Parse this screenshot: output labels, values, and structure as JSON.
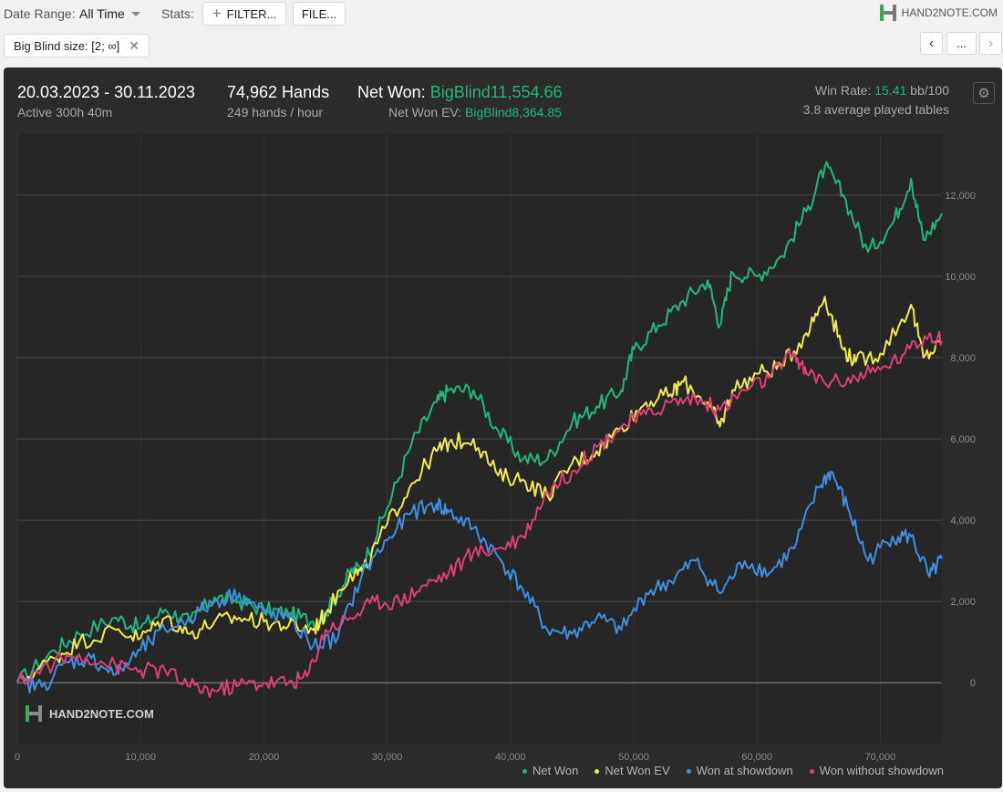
{
  "toolbar": {
    "date_range_label": "Date Range:",
    "date_range_value": "All Time",
    "stats_label": "Stats:",
    "filter_button": "FILTER...",
    "file_button": "FILE...",
    "logo_text": "HAND2NOTE.COM"
  },
  "filter_chip": "Big Blind size: [2; ∞]",
  "nav": {
    "more": "..."
  },
  "summary": {
    "date_range": "20.03.2023 - 30.11.2023",
    "active": "Active 300h 40m",
    "hands": "74,962 Hands",
    "hands_rate": "249 hands / hour",
    "net_won_label": "Net Won:",
    "net_won_value": "BigBlind11,554.66",
    "net_won_ev_label": "Net Won  EV:",
    "net_won_ev_value": "BigBlind8,364.85",
    "win_rate_label": "Win Rate:",
    "win_rate_value": "15.41",
    "win_rate_unit": "bb/100",
    "tables": "3.8 average played tables"
  },
  "watermark": "HAND2NOTE.COM",
  "chart_data": {
    "type": "line",
    "xlim": [
      0,
      75000
    ],
    "ylim": [
      -1500,
      13500
    ],
    "x_ticks": [
      0,
      10000,
      20000,
      30000,
      40000,
      50000,
      60000,
      70000
    ],
    "x_tick_labels": [
      "0",
      "10,000",
      "20,000",
      "30,000",
      "40,000",
      "50,000",
      "60,000",
      "70,000"
    ],
    "y_ticks": [
      0,
      2000,
      4000,
      6000,
      8000,
      10000,
      12000
    ],
    "y_tick_labels": [
      "0",
      "2,000",
      "4,000",
      "6,000",
      "8,000",
      "10,000",
      "12,000"
    ],
    "y_axis_side": "right",
    "grid": true,
    "legend_position": "bottom-right",
    "colors": {
      "Net Won": "#1fb87a",
      "Net Won  EV": "#f2ea4c",
      "Won at showdown": "#3f8fe0",
      "Won without showdown": "#dd3f77"
    },
    "series": [
      {
        "name": "Net Won",
        "points": [
          [
            0,
            0
          ],
          [
            3000,
            800
          ],
          [
            5000,
            1200
          ],
          [
            8000,
            1600
          ],
          [
            10000,
            1350
          ],
          [
            12000,
            1800
          ],
          [
            14000,
            1500
          ],
          [
            16000,
            2100
          ],
          [
            18000,
            2000
          ],
          [
            20000,
            1800
          ],
          [
            22000,
            1700
          ],
          [
            24000,
            1500
          ],
          [
            25000,
            1700
          ],
          [
            27000,
            2700
          ],
          [
            28000,
            2900
          ],
          [
            30000,
            4300
          ],
          [
            32000,
            5900
          ],
          [
            34000,
            6900
          ],
          [
            35000,
            7200
          ],
          [
            37000,
            7200
          ],
          [
            39000,
            6200
          ],
          [
            41000,
            5500
          ],
          [
            43000,
            5500
          ],
          [
            45000,
            6400
          ],
          [
            47000,
            6800
          ],
          [
            49000,
            7200
          ],
          [
            50000,
            8200
          ],
          [
            52000,
            8800
          ],
          [
            54000,
            9400
          ],
          [
            56000,
            9900
          ],
          [
            57000,
            8800
          ],
          [
            58000,
            10100
          ],
          [
            60000,
            10000
          ],
          [
            62000,
            10500
          ],
          [
            64000,
            11600
          ],
          [
            65500,
            12700
          ],
          [
            67000,
            12000
          ],
          [
            69000,
            10600
          ],
          [
            71000,
            11300
          ],
          [
            72500,
            12400
          ],
          [
            73500,
            10900
          ],
          [
            75000,
            11550
          ]
        ]
      },
      {
        "name": "Net Won  EV",
        "points": [
          [
            0,
            0
          ],
          [
            3000,
            600
          ],
          [
            5000,
            1000
          ],
          [
            8000,
            1300
          ],
          [
            10000,
            1100
          ],
          [
            12000,
            1600
          ],
          [
            14000,
            1200
          ],
          [
            16000,
            1500
          ],
          [
            18000,
            1600
          ],
          [
            20000,
            1500
          ],
          [
            22000,
            1400
          ],
          [
            24000,
            1300
          ],
          [
            25000,
            1700
          ],
          [
            27000,
            2700
          ],
          [
            28000,
            2700
          ],
          [
            30000,
            3900
          ],
          [
            32000,
            4900
          ],
          [
            34000,
            5700
          ],
          [
            35000,
            5900
          ],
          [
            37000,
            6000
          ],
          [
            39000,
            5100
          ],
          [
            41000,
            5000
          ],
          [
            43000,
            4600
          ],
          [
            45000,
            5400
          ],
          [
            47000,
            5700
          ],
          [
            49000,
            6300
          ],
          [
            51000,
            6900
          ],
          [
            53000,
            7100
          ],
          [
            54000,
            7400
          ],
          [
            56000,
            6900
          ],
          [
            57000,
            6300
          ],
          [
            58000,
            7200
          ],
          [
            60000,
            7600
          ],
          [
            62000,
            7800
          ],
          [
            64000,
            8600
          ],
          [
            65500,
            9500
          ],
          [
            67000,
            8200
          ],
          [
            68000,
            7900
          ],
          [
            70000,
            8100
          ],
          [
            72500,
            9300
          ],
          [
            73500,
            8000
          ],
          [
            75000,
            8365
          ]
        ]
      },
      {
        "name": "Won at showdown",
        "points": [
          [
            0,
            0
          ],
          [
            2000,
            -100
          ],
          [
            4000,
            500
          ],
          [
            6000,
            600
          ],
          [
            8000,
            200
          ],
          [
            10000,
            800
          ],
          [
            12000,
            1300
          ],
          [
            14000,
            1600
          ],
          [
            16000,
            2000
          ],
          [
            18000,
            2200
          ],
          [
            20000,
            1700
          ],
          [
            22000,
            1600
          ],
          [
            24000,
            900
          ],
          [
            26000,
            1100
          ],
          [
            28000,
            2700
          ],
          [
            30000,
            3500
          ],
          [
            32000,
            4200
          ],
          [
            34000,
            4400
          ],
          [
            35000,
            4200
          ],
          [
            37000,
            3800
          ],
          [
            39000,
            3100
          ],
          [
            41000,
            2300
          ],
          [
            43000,
            1300
          ],
          [
            45000,
            1200
          ],
          [
            47000,
            1600
          ],
          [
            49000,
            1300
          ],
          [
            51000,
            2200
          ],
          [
            53000,
            2500
          ],
          [
            55000,
            3000
          ],
          [
            57000,
            2200
          ],
          [
            59000,
            3000
          ],
          [
            61000,
            2700
          ],
          [
            63000,
            3300
          ],
          [
            65000,
            4800
          ],
          [
            66000,
            5200
          ],
          [
            67500,
            4200
          ],
          [
            69000,
            3000
          ],
          [
            71000,
            3600
          ],
          [
            72500,
            3600
          ],
          [
            74000,
            2600
          ],
          [
            75000,
            3050
          ]
        ]
      },
      {
        "name": "Won without showdown",
        "points": [
          [
            0,
            0
          ],
          [
            3000,
            500
          ],
          [
            5000,
            700
          ],
          [
            8000,
            400
          ],
          [
            10000,
            300
          ],
          [
            12000,
            300
          ],
          [
            14000,
            -100
          ],
          [
            16000,
            -200
          ],
          [
            18000,
            -50
          ],
          [
            20000,
            0
          ],
          [
            22000,
            0
          ],
          [
            23500,
            150
          ],
          [
            25000,
            1300
          ],
          [
            27000,
            1600
          ],
          [
            29000,
            2000
          ],
          [
            31000,
            2000
          ],
          [
            33000,
            2400
          ],
          [
            35000,
            2700
          ],
          [
            37000,
            3200
          ],
          [
            39000,
            3300
          ],
          [
            41000,
            3600
          ],
          [
            43000,
            4700
          ],
          [
            45000,
            5200
          ],
          [
            47000,
            5800
          ],
          [
            49000,
            6300
          ],
          [
            51000,
            6600
          ],
          [
            53000,
            6900
          ],
          [
            55000,
            7000
          ],
          [
            57000,
            6700
          ],
          [
            59000,
            7200
          ],
          [
            61000,
            7500
          ],
          [
            63000,
            8100
          ],
          [
            64000,
            7600
          ],
          [
            66000,
            7400
          ],
          [
            68000,
            7500
          ],
          [
            70000,
            7700
          ],
          [
            72000,
            8100
          ],
          [
            74000,
            8600
          ],
          [
            75000,
            8400
          ]
        ]
      }
    ]
  }
}
